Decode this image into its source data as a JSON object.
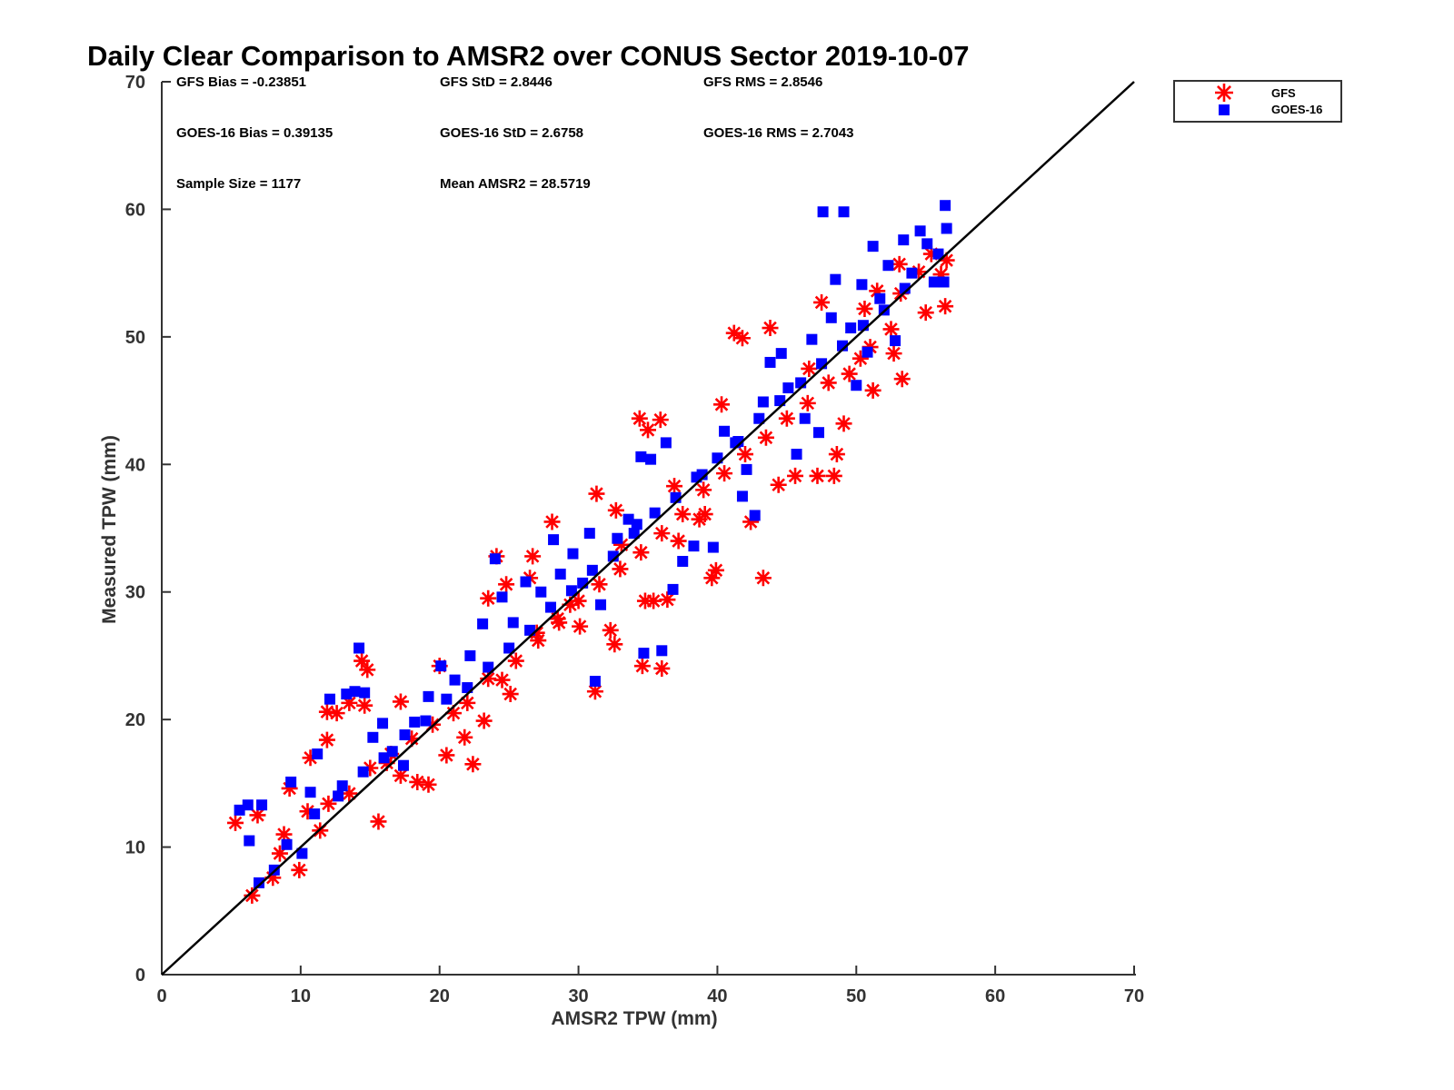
{
  "chart_data": {
    "type": "scatter",
    "title": "Daily Clear Comparison to AMSR2 over CONUS Sector 2019-10-07",
    "xlabel": "AMSR2 TPW (mm)",
    "ylabel": "Measured TPW (mm)",
    "xlim": [
      0,
      70
    ],
    "ylim": [
      0,
      70
    ],
    "xticks": [
      "0",
      "10",
      "20",
      "30",
      "40",
      "50",
      "60",
      "70"
    ],
    "yticks": [
      "0",
      "10",
      "20",
      "30",
      "40",
      "50",
      "60",
      "70"
    ],
    "grid": false,
    "legend_position": "outside-top-right",
    "stats": {
      "gfs_bias": "GFS Bias = -0.23851",
      "gfs_std": "GFS StD = 2.8446",
      "gfs_rms": "GFS RMS = 2.8546",
      "goes_bias": "GOES-16 Bias = 0.39135",
      "goes_std": "GOES-16 StD = 2.6758",
      "goes_rms": "GOES-16 RMS = 2.7043",
      "sample_size": "Sample Size = 1177",
      "mean_amsr2": "Mean AMSR2 = 28.5719"
    },
    "reference_line": {
      "x": [
        0,
        70
      ],
      "y": [
        0,
        70
      ],
      "color": "#000000"
    },
    "series": [
      {
        "name": "GFS",
        "marker": "asterisk",
        "color": "#ff0000",
        "points": [
          [
            5.3,
            11.9
          ],
          [
            6.5,
            6.2
          ],
          [
            6.9,
            12.5
          ],
          [
            8.0,
            7.6
          ],
          [
            8.8,
            11.0
          ],
          [
            9.2,
            14.6
          ],
          [
            9.9,
            8.2
          ],
          [
            10.7,
            17.0
          ],
          [
            11.4,
            11.3
          ],
          [
            11.9,
            18.4
          ],
          [
            11.9,
            20.6
          ],
          [
            12.6,
            20.5
          ],
          [
            13.5,
            21.3
          ],
          [
            14.4,
            24.6
          ],
          [
            14.8,
            23.9
          ],
          [
            14.6,
            21.1
          ],
          [
            15.6,
            12.0
          ],
          [
            16.2,
            16.6
          ],
          [
            17.2,
            15.6
          ],
          [
            17.2,
            21.4
          ],
          [
            18.4,
            15.1
          ],
          [
            19.2,
            14.9
          ],
          [
            20.0,
            24.2
          ],
          [
            20.5,
            17.2
          ],
          [
            21.8,
            18.6
          ],
          [
            22.4,
            16.5
          ],
          [
            23.2,
            19.9
          ],
          [
            24.5,
            23.1
          ],
          [
            25.1,
            22.0
          ],
          [
            23.5,
            29.5
          ],
          [
            24.1,
            32.8
          ],
          [
            24.8,
            30.6
          ],
          [
            26.5,
            31.1
          ],
          [
            26.7,
            32.8
          ],
          [
            27.1,
            26.2
          ],
          [
            28.1,
            35.5
          ],
          [
            28.6,
            27.6
          ],
          [
            29.4,
            29.0
          ],
          [
            30.1,
            27.3
          ],
          [
            31.2,
            22.2
          ],
          [
            31.3,
            37.7
          ],
          [
            32.3,
            27.0
          ],
          [
            32.6,
            25.9
          ],
          [
            32.7,
            36.4
          ],
          [
            33.1,
            33.7
          ],
          [
            34.4,
            43.6
          ],
          [
            34.6,
            24.2
          ],
          [
            34.8,
            29.3
          ],
          [
            35.0,
            42.7
          ],
          [
            35.4,
            29.3
          ],
          [
            35.9,
            43.5
          ],
          [
            36.0,
            24.0
          ],
          [
            36.4,
            29.4
          ],
          [
            36.9,
            38.3
          ],
          [
            37.2,
            34.0
          ],
          [
            38.7,
            35.7
          ],
          [
            39.1,
            36.1
          ],
          [
            39.6,
            31.1
          ],
          [
            39.9,
            31.7
          ],
          [
            40.3,
            44.7
          ],
          [
            41.2,
            50.3
          ],
          [
            41.8,
            49.9
          ],
          [
            42.4,
            35.5
          ],
          [
            43.3,
            31.1
          ],
          [
            43.8,
            50.7
          ],
          [
            44.4,
            38.4
          ],
          [
            45.6,
            39.1
          ],
          [
            46.6,
            47.5
          ],
          [
            47.2,
            39.1
          ],
          [
            47.5,
            52.7
          ],
          [
            48.4,
            39.1
          ],
          [
            48.6,
            40.8
          ],
          [
            49.1,
            43.2
          ],
          [
            50.3,
            48.3
          ],
          [
            50.6,
            52.2
          ],
          [
            51.2,
            45.8
          ],
          [
            51.5,
            53.6
          ],
          [
            52.7,
            48.7
          ],
          [
            53.2,
            53.4
          ],
          [
            53.3,
            46.7
          ],
          [
            53.1,
            55.7
          ],
          [
            54.5,
            55.1
          ],
          [
            55.0,
            51.9
          ],
          [
            55.4,
            56.5
          ],
          [
            56.1,
            54.9
          ],
          [
            56.4,
            52.4
          ],
          [
            56.5,
            56.0
          ],
          [
            8.5,
            9.5
          ],
          [
            10.5,
            12.8
          ],
          [
            12.0,
            13.4
          ],
          [
            13.5,
            14.2
          ],
          [
            15.0,
            16.2
          ],
          [
            16.5,
            17.3
          ],
          [
            18.0,
            18.5
          ],
          [
            19.5,
            19.6
          ],
          [
            21.0,
            20.5
          ],
          [
            22.0,
            21.3
          ],
          [
            23.5,
            23.2
          ],
          [
            25.5,
            24.6
          ],
          [
            27.0,
            26.8
          ],
          [
            28.5,
            27.9
          ],
          [
            30.0,
            29.3
          ],
          [
            31.5,
            30.6
          ],
          [
            33.0,
            31.8
          ],
          [
            34.5,
            33.1
          ],
          [
            36.0,
            34.6
          ],
          [
            37.5,
            36.1
          ],
          [
            39.0,
            38.0
          ],
          [
            40.5,
            39.3
          ],
          [
            42.0,
            40.8
          ],
          [
            43.5,
            42.1
          ],
          [
            45.0,
            43.6
          ],
          [
            46.5,
            44.8
          ],
          [
            48.0,
            46.4
          ],
          [
            49.5,
            47.1
          ],
          [
            51.0,
            49.2
          ],
          [
            52.5,
            50.6
          ]
        ]
      },
      {
        "name": "GOES-16",
        "marker": "square",
        "color": "#0000ff",
        "points": [
          [
            5.6,
            12.9
          ],
          [
            6.2,
            13.3
          ],
          [
            6.3,
            10.5
          ],
          [
            7.0,
            7.2
          ],
          [
            7.2,
            13.3
          ],
          [
            8.1,
            8.2
          ],
          [
            9.3,
            15.1
          ],
          [
            10.1,
            9.5
          ],
          [
            10.7,
            14.3
          ],
          [
            11.2,
            17.3
          ],
          [
            12.1,
            21.6
          ],
          [
            12.7,
            14.0
          ],
          [
            13.3,
            22.0
          ],
          [
            13.9,
            22.2
          ],
          [
            14.2,
            25.6
          ],
          [
            14.6,
            22.1
          ],
          [
            15.2,
            18.6
          ],
          [
            15.9,
            19.7
          ],
          [
            16.6,
            17.5
          ],
          [
            17.4,
            16.4
          ],
          [
            18.2,
            19.8
          ],
          [
            19.2,
            21.8
          ],
          [
            20.1,
            24.2
          ],
          [
            21.1,
            23.1
          ],
          [
            22.2,
            25.0
          ],
          [
            23.1,
            27.5
          ],
          [
            24.0,
            32.6
          ],
          [
            24.5,
            29.6
          ],
          [
            25.3,
            27.6
          ],
          [
            26.2,
            30.8
          ],
          [
            27.3,
            30.0
          ],
          [
            28.2,
            34.1
          ],
          [
            28.7,
            31.4
          ],
          [
            29.6,
            33.0
          ],
          [
            30.3,
            30.7
          ],
          [
            30.8,
            34.6
          ],
          [
            31.2,
            23.0
          ],
          [
            31.6,
            29.0
          ],
          [
            32.8,
            34.2
          ],
          [
            33.6,
            35.7
          ],
          [
            34.2,
            35.3
          ],
          [
            34.7,
            25.2
          ],
          [
            34.5,
            40.6
          ],
          [
            35.2,
            40.4
          ],
          [
            36.0,
            25.4
          ],
          [
            36.3,
            41.7
          ],
          [
            36.8,
            30.2
          ],
          [
            37.5,
            32.4
          ],
          [
            38.3,
            33.6
          ],
          [
            38.9,
            39.2
          ],
          [
            39.7,
            33.5
          ],
          [
            40.5,
            42.6
          ],
          [
            41.3,
            41.7
          ],
          [
            41.8,
            37.5
          ],
          [
            42.1,
            39.6
          ],
          [
            42.7,
            36.0
          ],
          [
            43.3,
            44.9
          ],
          [
            43.8,
            48.0
          ],
          [
            44.6,
            48.7
          ],
          [
            45.1,
            46.0
          ],
          [
            45.7,
            40.8
          ],
          [
            46.3,
            43.6
          ],
          [
            46.8,
            49.8
          ],
          [
            47.3,
            42.5
          ],
          [
            47.6,
            59.8
          ],
          [
            48.2,
            51.5
          ],
          [
            48.5,
            54.5
          ],
          [
            49.1,
            59.8
          ],
          [
            49.6,
            50.7
          ],
          [
            50.0,
            46.2
          ],
          [
            50.4,
            54.1
          ],
          [
            50.8,
            48.8
          ],
          [
            51.2,
            57.1
          ],
          [
            51.7,
            53.0
          ],
          [
            52.3,
            55.6
          ],
          [
            52.8,
            49.7
          ],
          [
            53.4,
            57.6
          ],
          [
            54.0,
            55.0
          ],
          [
            54.6,
            58.3
          ],
          [
            55.1,
            57.3
          ],
          [
            55.6,
            54.3
          ],
          [
            55.9,
            56.5
          ],
          [
            56.4,
            60.3
          ],
          [
            56.5,
            58.5
          ],
          [
            56.3,
            54.3
          ],
          [
            9.0,
            10.2
          ],
          [
            11.0,
            12.6
          ],
          [
            13.0,
            14.8
          ],
          [
            14.5,
            15.9
          ],
          [
            16.0,
            17.0
          ],
          [
            17.5,
            18.8
          ],
          [
            19.0,
            19.9
          ],
          [
            20.5,
            21.6
          ],
          [
            22.0,
            22.5
          ],
          [
            23.5,
            24.1
          ],
          [
            25.0,
            25.6
          ],
          [
            26.5,
            27.0
          ],
          [
            28.0,
            28.8
          ],
          [
            29.5,
            30.1
          ],
          [
            31.0,
            31.7
          ],
          [
            32.5,
            32.8
          ],
          [
            34.0,
            34.6
          ],
          [
            35.5,
            36.2
          ],
          [
            37.0,
            37.4
          ],
          [
            38.5,
            39.0
          ],
          [
            40.0,
            40.5
          ],
          [
            41.5,
            41.8
          ],
          [
            43.0,
            43.6
          ],
          [
            44.5,
            45.0
          ],
          [
            46.0,
            46.4
          ],
          [
            47.5,
            47.9
          ],
          [
            49.0,
            49.3
          ],
          [
            50.5,
            50.9
          ],
          [
            52.0,
            52.1
          ],
          [
            53.5,
            53.8
          ]
        ]
      }
    ]
  }
}
